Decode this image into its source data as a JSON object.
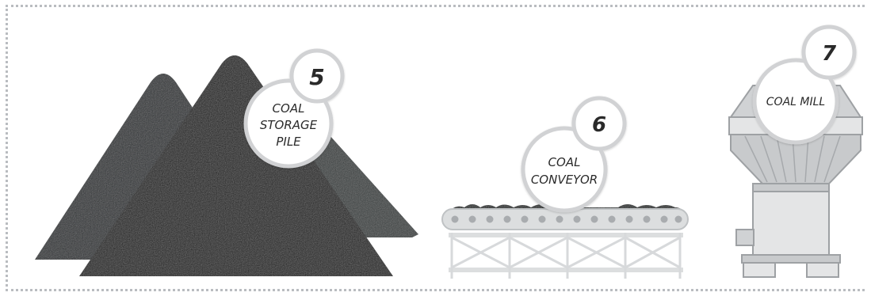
{
  "stages": [
    {
      "number": "5",
      "label_lines": [
        "COAL",
        "STORAGE",
        "PILE"
      ]
    },
    {
      "number": "6",
      "label_lines": [
        "COAL",
        "CONVEYOR"
      ]
    },
    {
      "number": "7",
      "label_lines": [
        "COAL MILL"
      ]
    }
  ],
  "colors": {
    "coal_dark": "#1c1e1e",
    "coal_mid": "#2f3334",
    "machine_light": "#e4e5e6",
    "machine_mid": "#c8cacc",
    "machine_dark": "#a9acaf",
    "bubble_stroke": "#d1d2d4",
    "frame_dots": "#b9bcc0"
  },
  "icons": [
    "coal-pile-icon",
    "conveyor-belt-icon",
    "coal-mill-icon"
  ]
}
